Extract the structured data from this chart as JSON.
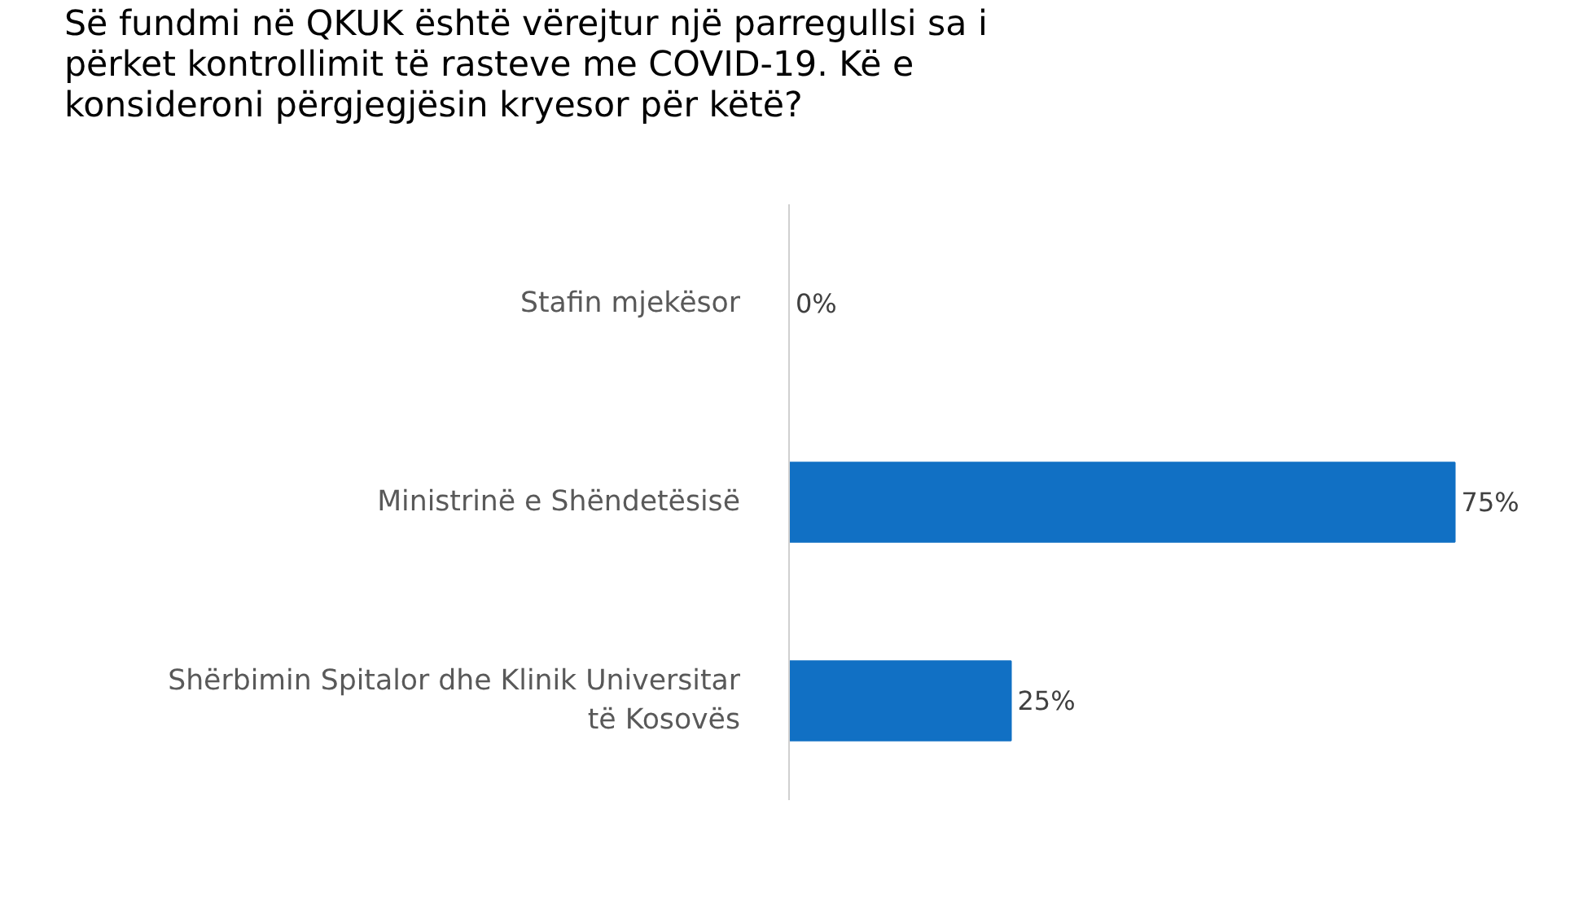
{
  "chart_data": {
    "type": "bar",
    "orientation": "horizontal",
    "title": "Së fundmi në QKUK është vërejtur një parregullsi sa i përket kontrollimit të rasteve me COVID-19. Kë e konsideroni përgjegjësin kryesor për këtë?",
    "categories": [
      "Stafin mjekësor",
      "Ministrinë e Shëndetësisë",
      "Shërbimin Spitalor dhe Klinik Universitar të Kosovës"
    ],
    "values": [
      0,
      75,
      25
    ],
    "value_labels": [
      "0%",
      "75%",
      "25%"
    ],
    "color": "#1170c4"
  }
}
